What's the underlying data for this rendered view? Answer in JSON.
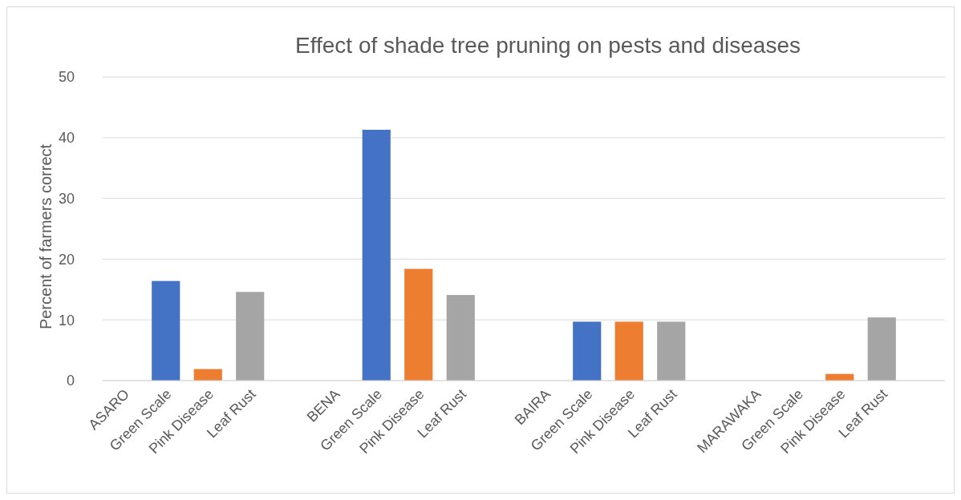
{
  "chart_data": {
    "type": "bar",
    "title": "Effect of shade tree pruning on pests and diseases",
    "ylabel": "Percent of farmers correct",
    "categories": [
      "ASARO",
      "Green Scale",
      "Pink Disease",
      "Leaf Rust",
      null,
      "BENA",
      "Green Scale",
      "Pink Disease",
      "Leaf Rust",
      null,
      "BAIRA",
      "Green Scale",
      "Pink Disease",
      "Leaf Rust",
      null,
      "MARAWAKA",
      "Green Scale",
      "Pink Disease",
      "Leaf Rust",
      null
    ],
    "values": [
      null,
      16.4,
      1.9,
      14.6,
      null,
      null,
      41.3,
      18.4,
      14.1,
      null,
      null,
      9.7,
      9.7,
      9.7,
      null,
      null,
      0,
      1.1,
      10.4,
      null
    ],
    "colors": [
      null,
      "#4472c4",
      "#ed7d31",
      "#a5a5a5",
      null,
      null,
      "#4472c4",
      "#ed7d31",
      "#a5a5a5",
      null,
      null,
      "#4472c4",
      "#ed7d31",
      "#a5a5a5",
      null,
      null,
      "#4472c4",
      "#ed7d31",
      "#a5a5a5",
      null
    ],
    "ylim": [
      0,
      50
    ],
    "yticks": [
      0,
      10,
      20,
      30,
      40,
      50
    ],
    "grid": "y"
  }
}
